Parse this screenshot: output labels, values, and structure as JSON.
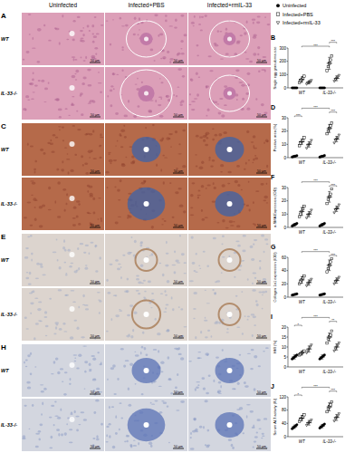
{
  "figure": {
    "column_headers": [
      "Uninfected",
      "Infected+PBS",
      "Infected+rmIL-33"
    ],
    "scale_bar": "50 μm",
    "panels": [
      {
        "label": "A",
        "rows": [
          "WT",
          "IL-33-/-"
        ]
      },
      {
        "label": "C",
        "rows": [
          "WT",
          "IL-33-/-"
        ]
      },
      {
        "label": "E",
        "rows": [
          "WT",
          "IL-33-/-"
        ]
      },
      {
        "label": "H",
        "rows": [
          "WT",
          "IL-33-/-"
        ]
      }
    ]
  },
  "chart_data": [
    {
      "type": "scatter",
      "title": "B",
      "y_label": "Single egg granuloma size",
      "categories": [
        "WT",
        "IL-33-/-"
      ],
      "ylim": [
        0,
        300
      ],
      "yticks": [
        0,
        100,
        200,
        300
      ],
      "legend": "top-right",
      "series": [
        {
          "name": "Uninfected",
          "marker": "circle",
          "color": "#000000",
          "values": [
            0,
            0
          ],
          "errors": [
            0,
            0
          ],
          "points": [
            [
              0,
              0,
              0,
              0,
              0
            ],
            [
              0,
              0,
              0,
              0,
              0
            ]
          ]
        },
        {
          "name": "Infected+PBS",
          "marker": "square",
          "color": "#000000",
          "values": [
            62,
            185
          ],
          "errors": [
            20,
            45
          ],
          "points": [
            [
              40,
              55,
              62,
              75,
              88
            ],
            [
              130,
              160,
              185,
              210,
              240
            ]
          ]
        },
        {
          "name": "Infected+rmIL-33",
          "marker": "triangle-down",
          "color": "#000000",
          "values": [
            42,
            72
          ],
          "errors": [
            12,
            18
          ],
          "points": [
            [
              28,
              36,
              42,
              48,
              56
            ],
            [
              50,
              62,
              72,
              82,
              94
            ]
          ]
        }
      ],
      "annotations": [
        {
          "text": "***",
          "groups": [
            1,
            4
          ]
        },
        {
          "text": "***",
          "groups": [
            4,
            5
          ]
        }
      ]
    },
    {
      "type": "scatter",
      "title": "D",
      "y_label": "Positive area (%)",
      "categories": [
        "WT",
        "IL-33-/-"
      ],
      "ylim": [
        0,
        30
      ],
      "yticks": [
        0,
        10,
        20,
        30
      ],
      "series": [
        {
          "marker": "circle",
          "color": "#000000",
          "values": [
            1,
            1
          ],
          "errors": [
            0.5,
            0.5
          ],
          "points": [
            [
              0.5,
              0.8,
              1,
              1.2,
              1.5
            ],
            [
              0.4,
              0.8,
              1,
              1.2,
              1.6
            ]
          ]
        },
        {
          "marker": "square",
          "color": "#000000",
          "values": [
            12,
            22
          ],
          "errors": [
            2,
            3
          ],
          "points": [
            [
              9,
              11,
              12,
              13,
              15
            ],
            [
              18,
              20,
              22,
              24,
              26
            ]
          ]
        },
        {
          "marker": "triangle-down",
          "color": "#000000",
          "values": [
            10,
            14
          ],
          "errors": [
            2,
            2
          ],
          "points": [
            [
              7,
              9,
              10,
              11,
              13
            ],
            [
              11,
              13,
              14,
              15,
              17
            ]
          ]
        }
      ],
      "annotations": [
        {
          "text": "***",
          "groups": [
            0,
            1
          ]
        },
        {
          "text": "***",
          "groups": [
            4,
            5
          ]
        },
        {
          "text": "***",
          "groups": [
            1,
            4
          ]
        }
      ]
    },
    {
      "type": "scatter",
      "title": "F",
      "y_label": "α-SMA Expression (IOD)",
      "categories": [
        "WT",
        "IL-33-/-"
      ],
      "ylim": [
        0,
        30
      ],
      "yticks": [
        0,
        10,
        20,
        30
      ],
      "series": [
        {
          "marker": "circle",
          "color": "#000000",
          "values": [
            2,
            2
          ],
          "errors": [
            1,
            1
          ],
          "points": [
            [
              1,
              1.5,
              2,
              2.5,
              3
            ],
            [
              1,
              1.5,
              2,
              2.5,
              3
            ]
          ]
        },
        {
          "marker": "square",
          "color": "#000000",
          "values": [
            12,
            23
          ],
          "errors": [
            3,
            4
          ],
          "points": [
            [
              8,
              10,
              12,
              14,
              16
            ],
            [
              18,
              21,
              23,
              25,
              29
            ]
          ]
        },
        {
          "marker": "triangle-down",
          "color": "#000000",
          "values": [
            10,
            14
          ],
          "errors": [
            2,
            2
          ],
          "points": [
            [
              7,
              9,
              10,
              11,
              13
            ],
            [
              11,
              13,
              14,
              15,
              17
            ]
          ]
        }
      ],
      "annotations": [
        {
          "text": "***",
          "groups": [
            4,
            5
          ]
        },
        {
          "text": "***",
          "groups": [
            1,
            4
          ]
        }
      ]
    },
    {
      "type": "scatter",
      "title": "G",
      "y_label": "Collagen 1α1 expression (IOD)",
      "categories": [
        "WT",
        "IL-33-/-"
      ],
      "ylim": [
        0,
        60
      ],
      "yticks": [
        0,
        20,
        40,
        60
      ],
      "series": [
        {
          "marker": "circle",
          "color": "#000000",
          "values": [
            4,
            4
          ],
          "errors": [
            1,
            1
          ],
          "points": [
            [
              3,
              3.5,
              4,
              4.5,
              5
            ],
            [
              3,
              3.5,
              4,
              4.5,
              5
            ]
          ]
        },
        {
          "marker": "square",
          "color": "#000000",
          "values": [
            26,
            48
          ],
          "errors": [
            5,
            8
          ],
          "points": [
            [
              20,
              23,
              26,
              29,
              32
            ],
            [
              38,
              43,
              48,
              53,
              58
            ]
          ]
        },
        {
          "marker": "triangle-down",
          "color": "#000000",
          "values": [
            22,
            25
          ],
          "errors": [
            4,
            4
          ],
          "points": [
            [
              17,
              20,
              22,
              24,
              27
            ],
            [
              20,
              23,
              25,
              27,
              30
            ]
          ]
        }
      ],
      "annotations": [
        {
          "text": "***",
          "groups": [
            4,
            5
          ]
        },
        {
          "text": "***",
          "groups": [
            1,
            4
          ]
        }
      ]
    },
    {
      "type": "scatter",
      "title": "I",
      "y_label": "HMI (%)",
      "categories": [
        "WT",
        "IL-33-/-"
      ],
      "ylim": [
        0,
        20
      ],
      "yticks": [
        0,
        5,
        10,
        15,
        20
      ],
      "series": [
        {
          "marker": "circle",
          "color": "#000000",
          "values": [
            5,
            5
          ],
          "errors": [
            1,
            1
          ],
          "points": [
            [
              4,
              4.5,
              5,
              5.5,
              6
            ],
            [
              4,
              4.5,
              5,
              5.5,
              6
            ]
          ]
        },
        {
          "marker": "square",
          "color": "#000000",
          "values": [
            7,
            15
          ],
          "errors": [
            1,
            2
          ],
          "points": [
            [
              6,
              6.5,
              7,
              7.5,
              8
            ],
            [
              12,
              14,
              15,
              16,
              18
            ]
          ]
        },
        {
          "marker": "triangle-down",
          "color": "#000000",
          "values": [
            9,
            10
          ],
          "errors": [
            1.5,
            1.5
          ],
          "points": [
            [
              7,
              8,
              9,
              10,
              11
            ],
            [
              8,
              9,
              10,
              11,
              12
            ]
          ]
        }
      ],
      "annotations": [
        {
          "text": "*",
          "groups": [
            0,
            1
          ]
        },
        {
          "text": "**",
          "groups": [
            4,
            5
          ]
        },
        {
          "text": "***",
          "groups": [
            1,
            4
          ]
        }
      ]
    },
    {
      "type": "scatter",
      "title": "J",
      "y_label": "Serum ALT activity (IU)",
      "categories": [
        "WT",
        "IL-33-/-"
      ],
      "ylim": [
        0,
        120
      ],
      "yticks": [
        0,
        40,
        80,
        120
      ],
      "series": [
        {
          "marker": "circle",
          "color": "#000000",
          "values": [
            30,
            32
          ],
          "errors": [
            5,
            5
          ],
          "points": [
            [
              24,
              27,
              30,
              33,
              36
            ],
            [
              26,
              29,
              32,
              35,
              38
            ]
          ]
        },
        {
          "marker": "square",
          "color": "#000000",
          "values": [
            56,
            90
          ],
          "errors": [
            8,
            12
          ],
          "points": [
            [
              46,
              52,
              56,
              60,
              66
            ],
            [
              75,
              84,
              90,
              96,
              105
            ]
          ]
        },
        {
          "marker": "triangle-down",
          "color": "#000000",
          "values": [
            42,
            58
          ],
          "errors": [
            7,
            9
          ],
          "points": [
            [
              34,
              39,
              42,
              45,
              50
            ],
            [
              47,
              54,
              58,
              62,
              69
            ]
          ]
        }
      ],
      "annotations": [
        {
          "text": "*",
          "groups": [
            0,
            1
          ]
        },
        {
          "text": "***",
          "groups": [
            4,
            5
          ]
        },
        {
          "text": "***",
          "groups": [
            1,
            4
          ]
        }
      ]
    }
  ]
}
